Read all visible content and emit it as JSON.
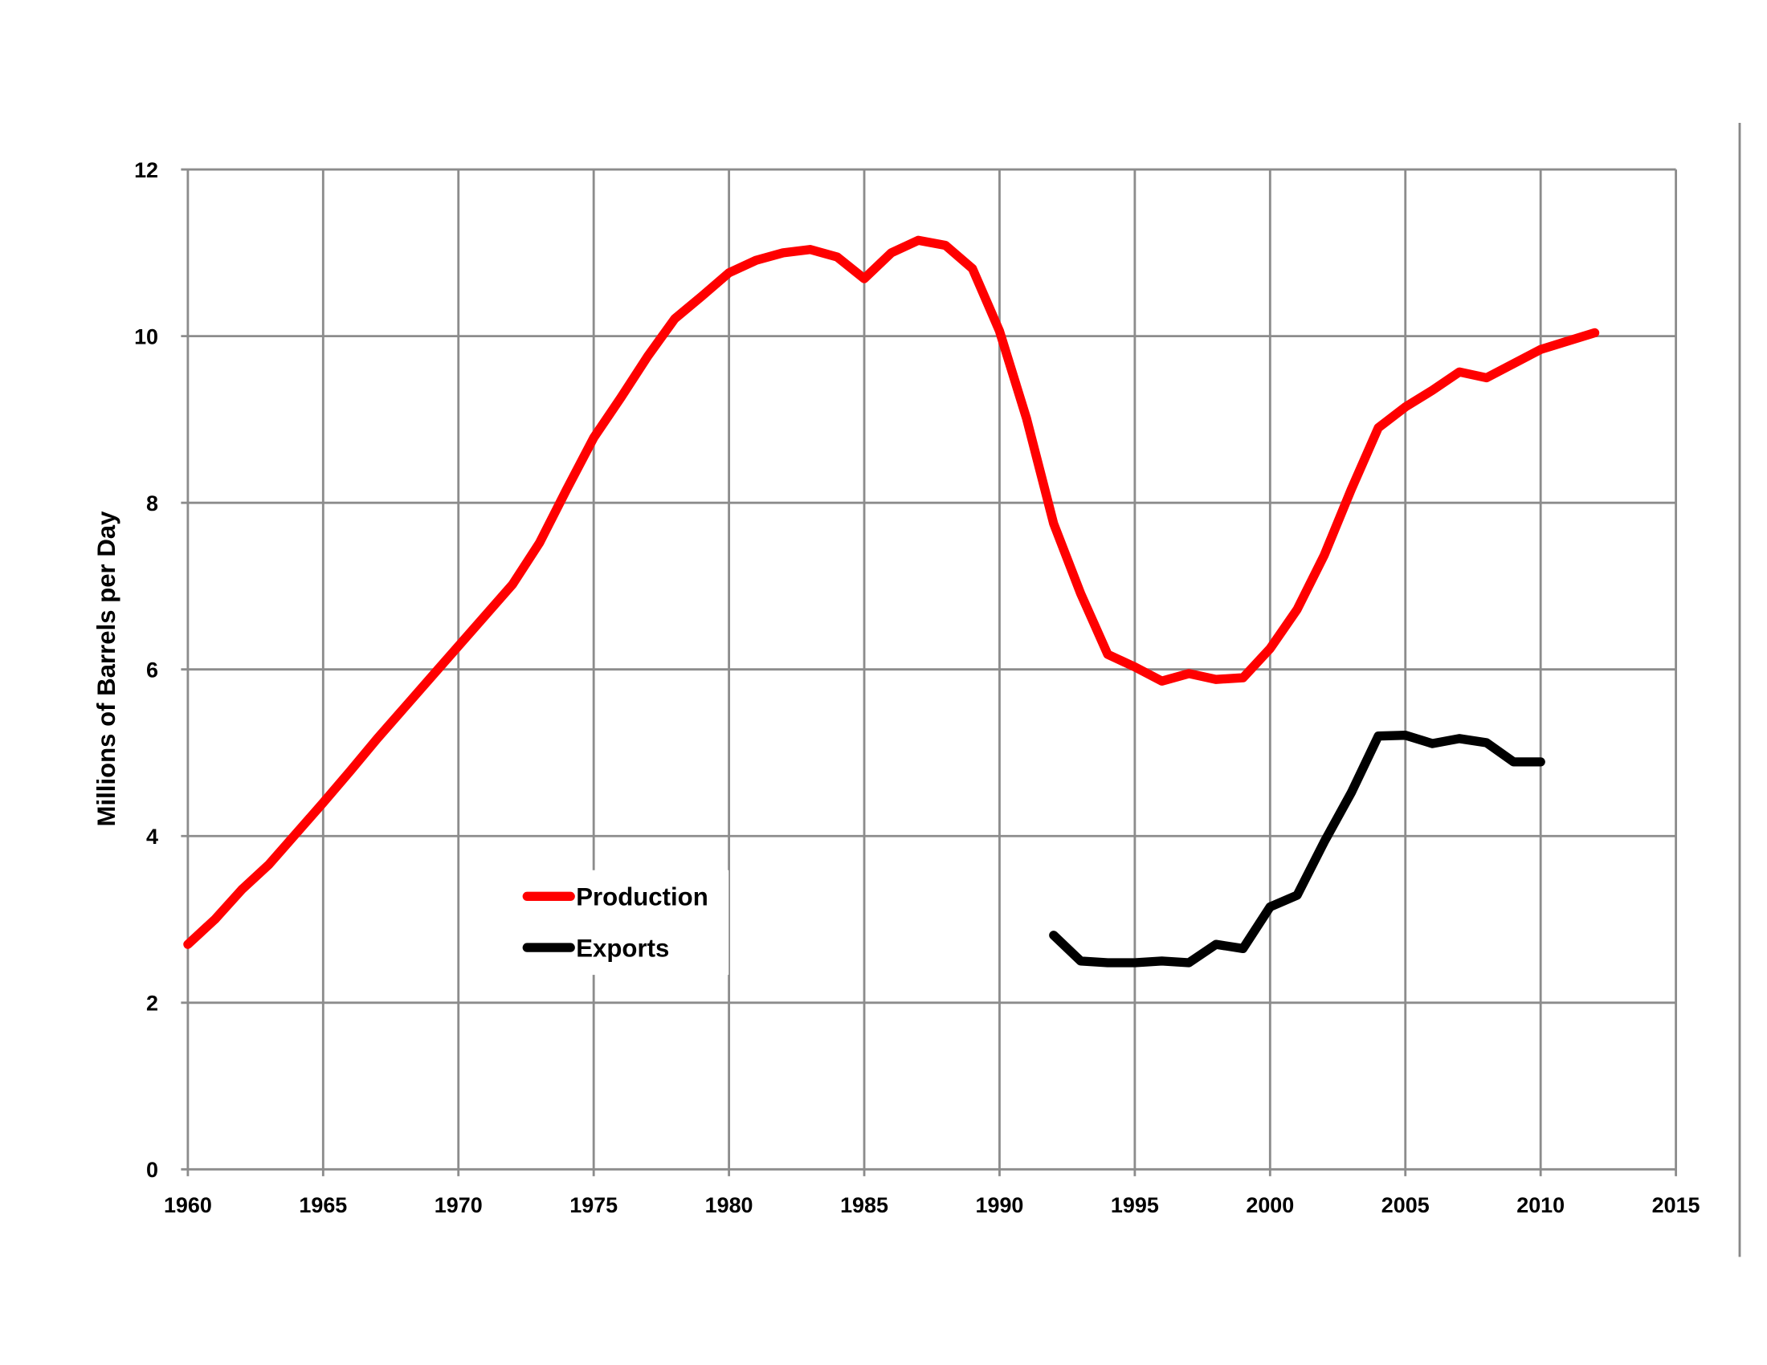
{
  "chart_data": {
    "type": "line",
    "title": "",
    "xlabel": "",
    "ylabel": "Millions of Barrels per Day",
    "xlim": [
      1960,
      2015
    ],
    "ylim": [
      0,
      12
    ],
    "x_ticks": [
      1960,
      1965,
      1970,
      1975,
      1980,
      1985,
      1990,
      1995,
      2000,
      2005,
      2010,
      2015
    ],
    "y_ticks": [
      0,
      2,
      4,
      6,
      8,
      10,
      12
    ],
    "grid": true,
    "legend_position": "lower-left inside",
    "series": [
      {
        "name": "Production",
        "color": "#ff0000",
        "x": [
          1960,
          1961,
          1962,
          1963,
          1964,
          1965,
          1966,
          1967,
          1968,
          1969,
          1970,
          1971,
          1972,
          1973,
          1974,
          1975,
          1976,
          1977,
          1978,
          1979,
          1980,
          1981,
          1982,
          1983,
          1984,
          1985,
          1986,
          1987,
          1988,
          1989,
          1990,
          1991,
          1992,
          1993,
          1994,
          1995,
          1996,
          1997,
          1998,
          1999,
          2000,
          2001,
          2002,
          2003,
          2004,
          2005,
          2006,
          2007,
          2008,
          2009,
          2010,
          2011,
          2012
        ],
        "values": [
          2.7,
          3.0,
          3.36,
          3.66,
          4.03,
          4.4,
          4.78,
          5.17,
          5.54,
          5.91,
          6.28,
          6.65,
          7.02,
          7.52,
          8.16,
          8.78,
          9.26,
          9.76,
          10.21,
          10.48,
          10.76,
          10.91,
          11.0,
          11.04,
          10.95,
          10.69,
          11.0,
          11.15,
          11.09,
          10.81,
          10.06,
          9.01,
          7.75,
          6.91,
          6.18,
          6.03,
          5.86,
          5.95,
          5.88,
          5.9,
          6.25,
          6.72,
          7.37,
          8.16,
          8.9,
          9.15,
          9.35,
          9.57,
          9.5,
          9.67,
          9.84,
          9.94,
          10.04
        ]
      },
      {
        "name": "Exports",
        "color": "#000000",
        "x": [
          1992,
          1993,
          1994,
          1995,
          1996,
          1997,
          1998,
          1999,
          2000,
          2001,
          2002,
          2003,
          2004,
          2005,
          2006,
          2007,
          2008,
          2009,
          2010
        ],
        "values": [
          2.81,
          2.5,
          2.48,
          2.48,
          2.5,
          2.48,
          2.7,
          2.65,
          3.15,
          3.29,
          3.93,
          4.52,
          5.2,
          5.21,
          5.11,
          5.17,
          5.12,
          4.89,
          4.89
        ]
      }
    ]
  }
}
